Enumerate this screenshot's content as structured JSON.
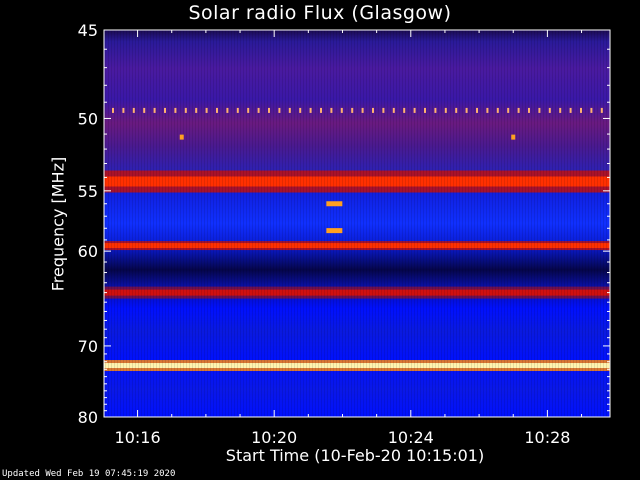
{
  "chart_data": {
    "type": "heatmap",
    "title": "Solar radio Flux (Glasgow)",
    "xlabel": "Start Time (10-Feb-20 10:15:01)",
    "ylabel": "Frequency [MHz]",
    "footer": "Updated Wed Feb 19 07:45:19 2020",
    "x_ticks": [
      "10:16",
      "10:20",
      "10:24",
      "10:28"
    ],
    "y_ticks": [
      45,
      50,
      55,
      60,
      70,
      80
    ],
    "y_scale": "reciprocal",
    "y_range_mhz": [
      45,
      80
    ],
    "colormap": [
      "#00003a",
      "#0000ff",
      "#3a1aa8",
      "#7a1878",
      "#d01010",
      "#ff4000",
      "#ff9a20",
      "#fff0a0"
    ],
    "bands": [
      {
        "freq_mhz": 49.5,
        "level": "orange dotted"
      },
      {
        "freq_mhz": 54.3,
        "level": "high"
      },
      {
        "freq_mhz": 59.5,
        "level": "high"
      },
      {
        "freq_mhz": 64.0,
        "level": "medium-high"
      },
      {
        "freq_mhz": 72.5,
        "level": "saturated"
      }
    ],
    "bursts": [
      {
        "time": "10:17",
        "freq_mhz": 51.2
      },
      {
        "time": "10:21",
        "freq_mhz": 56.0
      },
      {
        "time": "10:21",
        "freq_mhz": 58.2
      },
      {
        "time": "10:27",
        "freq_mhz": 51.2
      }
    ]
  }
}
